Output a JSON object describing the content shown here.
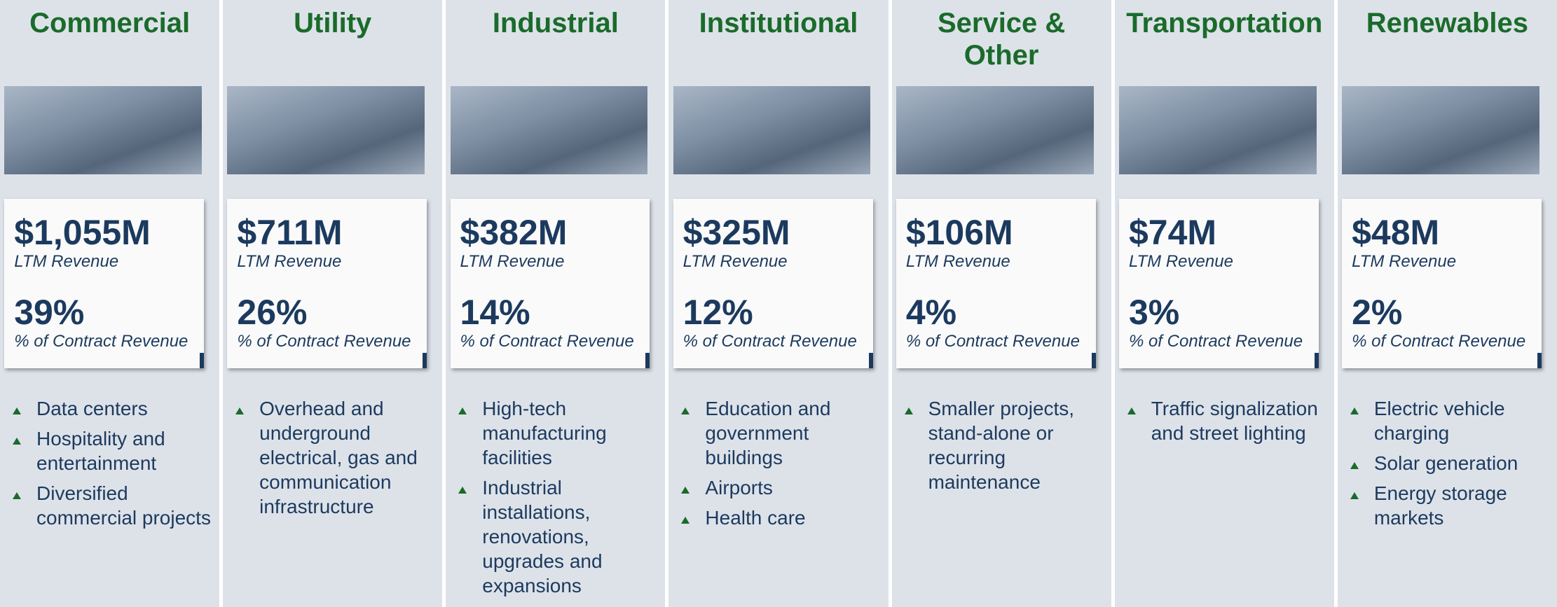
{
  "revenue_label": "LTM Revenue",
  "share_label": "% of Contract Revenue",
  "segments": [
    {
      "title": "Commercial",
      "revenue": "$1,055M",
      "share": "39%",
      "bullets": [
        "Data centers",
        "Hospitality and entertainment",
        "Diversified commercial projects"
      ]
    },
    {
      "title": "Utility",
      "revenue": "$711M",
      "share": "26%",
      "bullets": [
        "Overhead and underground electrical, gas and communication infrastructure"
      ]
    },
    {
      "title": "Industrial",
      "revenue": "$382M",
      "share": "14%",
      "bullets": [
        "High-tech manufacturing facilities",
        "Industrial installations, renovations, upgrades and expansions"
      ]
    },
    {
      "title": "Institutional",
      "revenue": "$325M",
      "share": "12%",
      "bullets": [
        "Education and government buildings",
        "Airports",
        "Health care"
      ]
    },
    {
      "title": "Service & Other",
      "revenue": "$106M",
      "share": "4%",
      "bullets": [
        "Smaller projects, stand-alone or recurring maintenance"
      ]
    },
    {
      "title": "Transportation",
      "revenue": "$74M",
      "share": "3%",
      "bullets": [
        "Traffic signalization and street lighting"
      ]
    },
    {
      "title": "Renewables",
      "revenue": "$48M",
      "share": "2%",
      "bullets": [
        "Electric vehicle charging",
        "Solar generation",
        "Energy storage markets"
      ]
    }
  ]
}
